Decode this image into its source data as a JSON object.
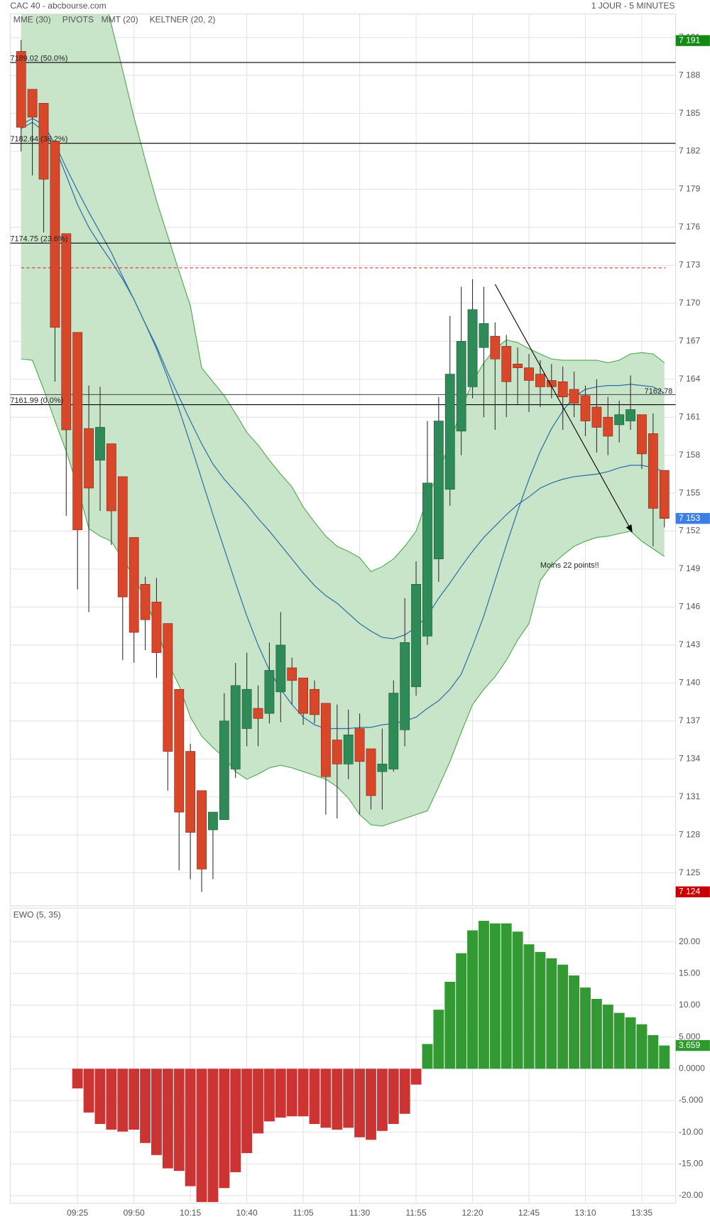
{
  "chart_data": [
    {
      "type": "candlestick",
      "title": "CAC 40 - abcbourse.com",
      "subtitle": "1 JOUR - 5 MINUTES",
      "categories": [
        null,
        null,
        null,
        null,
        null,
        "09:25",
        null,
        null,
        null,
        null,
        "09:50",
        null,
        null,
        null,
        null,
        "10:15",
        null,
        null,
        null,
        null,
        "10:40",
        null,
        null,
        null,
        null,
        "11:05",
        null,
        null,
        null,
        null,
        "11:30",
        null,
        null,
        null,
        null,
        "11:55",
        null,
        null,
        null,
        null,
        "12:20",
        null,
        null,
        null,
        null,
        "12:45",
        null,
        null,
        null,
        null,
        "13:10",
        null,
        null,
        null,
        null,
        "13:35",
        null,
        null
      ],
      "open": [
        7189.9,
        7186.9,
        7185.8,
        7182.8,
        7175.5,
        7167.7,
        7160.1,
        7157.6,
        7158.9,
        7156.3,
        7151.5,
        7147.8,
        7146.4,
        7144.7,
        7139.5,
        7134.6,
        7131.5,
        7128.4,
        7129.2,
        7133.2,
        7136.4,
        7138.0,
        7137.6,
        7139.3,
        7141.2,
        7140.4,
        7139.5,
        7138.4,
        7135.5,
        7133.6,
        7136.4,
        7134.8,
        7133.0,
        7133.2,
        7136.3,
        7139.7,
        7143.7,
        7149.8,
        7155.3,
        7159.9,
        7163.4,
        7166.5,
        7167.4,
        7166.6,
        7165.2,
        7164.9,
        7164.4,
        7163.9,
        7163.8,
        7163.2,
        7162.7,
        7161.8,
        7161.0,
        7160.4,
        7160.7,
        7161.2,
        7159.7,
        7156.8
      ],
      "high": [
        7190.8,
        7186.9,
        7185.8,
        7182.8,
        7175.5,
        7167.7,
        7163.5,
        7163.4,
        7158.9,
        7156.3,
        7151.5,
        7148.4,
        7148.3,
        7144.7,
        7139.5,
        7135.2,
        7131.5,
        7129.8,
        7139.2,
        7141.6,
        7142.4,
        7139.8,
        7143.2,
        7145.6,
        7142.0,
        7140.4,
        7140.2,
        7138.4,
        7138.3,
        7137.9,
        7137.6,
        7134.8,
        7136.4,
        7140.2,
        7146.7,
        7149.6,
        7160.7,
        7162.6,
        7169.0,
        7171.3,
        7171.9,
        7171.3,
        7168.5,
        7167.5,
        7166.5,
        7166.0,
        7165.5,
        7165.2,
        7165.0,
        7164.6,
        7163.5,
        7164.0,
        7162.6,
        7162.3,
        7164.3,
        7161.2,
        7161.3,
        7156.8
      ],
      "low": [
        7182.0,
        7180.1,
        7175.6,
        7163.8,
        7153.2,
        7147.4,
        7145.6,
        7153.6,
        7150.9,
        7141.8,
        7141.6,
        7142.6,
        7140.4,
        7131.5,
        7125.2,
        7124.5,
        7123.5,
        7124.5,
        7129.2,
        7132.5,
        7135.0,
        7135.0,
        7136.8,
        7136.9,
        7138.3,
        7136.7,
        7136.8,
        7129.6,
        7129.3,
        7132.4,
        7129.6,
        7130.0,
        7130.0,
        7133.0,
        7135.0,
        7139.0,
        7143.0,
        7148.0,
        7154.0,
        7158.0,
        7162.5,
        7161.0,
        7160.0,
        7161.0,
        7162.0,
        7161.4,
        7161.8,
        7162.5,
        7160.0,
        7161.0,
        7159.5,
        7158.2,
        7158.0,
        7159.0,
        7160.0,
        7156.9,
        7150.8,
        7152.3
      ],
      "close": [
        7183.9,
        7184.7,
        7179.8,
        7168.1,
        7160.0,
        7152.1,
        7155.4,
        7160.2,
        7153.6,
        7146.8,
        7144.0,
        7145.0,
        7142.4,
        7134.6,
        7129.8,
        7128.2,
        7125.3,
        7129.8,
        7137.0,
        7139.8,
        7139.5,
        7137.2,
        7141.0,
        7143.0,
        7140.2,
        7137.6,
        7137.5,
        7132.6,
        7133.6,
        7135.9,
        7133.8,
        7131.1,
        7133.6,
        7139.2,
        7143.2,
        7147.8,
        7155.8,
        7160.7,
        7164.4,
        7167.0,
        7169.5,
        7168.4,
        7165.6,
        7163.8,
        7164.9,
        7163.9,
        7163.4,
        7163.4,
        7162.6,
        7162.1,
        7160.7,
        7160.2,
        7159.5,
        7161.2,
        7161.6,
        7158.1,
        7153.8,
        7153.0
      ],
      "up_color": "#2e8b57",
      "down_color": "#d9472b",
      "ylim": [
        7122.4,
        7192.85
      ],
      "yticks": [
        {
          "value": 7125,
          "label": "7 125"
        },
        {
          "value": 7128,
          "label": "7 128"
        },
        {
          "value": 7131,
          "label": "7 131"
        },
        {
          "value": 7134,
          "label": "7 134"
        },
        {
          "value": 7137,
          "label": "7 137"
        },
        {
          "value": 7140,
          "label": "7 140"
        },
        {
          "value": 7143,
          "label": "7 143"
        },
        {
          "value": 7146,
          "label": "7 146"
        },
        {
          "value": 7149,
          "label": "7 149"
        },
        {
          "value": 7152,
          "label": "7 152"
        },
        {
          "value": 7155,
          "label": "7 155"
        },
        {
          "value": 7158,
          "label": "7 158"
        },
        {
          "value": 7161,
          "label": "7 161"
        },
        {
          "value": 7164,
          "label": "7 164"
        },
        {
          "value": 7167,
          "label": "7 167"
        },
        {
          "value": 7170,
          "label": "7 170"
        },
        {
          "value": 7173,
          "label": "7 173"
        },
        {
          "value": 7176,
          "label": "7 176"
        },
        {
          "value": 7179,
          "label": "7 179"
        },
        {
          "value": 7182,
          "label": "7 182"
        },
        {
          "value": 7185,
          "label": "7 185"
        },
        {
          "value": 7188,
          "label": "7 188"
        },
        {
          "value": 7191,
          "label": "7 191"
        }
      ],
      "grid": true,
      "overlays": [
        {
          "name": "MME (30)",
          "color": "#2a6ea6",
          "values": [
            7184.1,
            7184.6,
            7184.1,
            7182.6,
            7180.7,
            7178.9,
            7177.2,
            7175.6,
            7174.0,
            7172.1,
            7170.3,
            7168.4,
            7166.4,
            7164.1,
            7161.6,
            7158.9,
            7156.1,
            7153.3,
            7150.6,
            7147.9,
            7145.3,
            7143.0,
            7141.0,
            7139.5,
            7138.3,
            7137.3,
            7136.7,
            7136.4,
            7136.4,
            7136.4,
            7136.5,
            7136.5,
            7136.7,
            7136.8,
            7137.0,
            7137.3,
            7138.0,
            7138.6,
            7139.5,
            7140.7,
            7142.9,
            7145.3,
            7148.1,
            7150.9,
            7153.6,
            7156.1,
            7158.3,
            7160.1,
            7161.5,
            7162.6,
            7163.2,
            7163.4,
            7163.5,
            7163.5,
            7163.6,
            7163.5,
            7163.4,
            7162.9
          ]
        },
        {
          "name": "MMT (20)",
          "color": "#2a6ea6",
          "values": [
            7183.8,
            7184.3,
            7183.6,
            7182.3,
            7180.1,
            7177.8,
            7176.0,
            7174.6,
            7173.3,
            7171.9,
            7170.3,
            7168.4,
            7166.6,
            7164.5,
            7162.6,
            7160.7,
            7158.9,
            7157.3,
            7156.1,
            7155.1,
            7154.1,
            7153.0,
            7152.0,
            7150.9,
            7149.8,
            7148.7,
            7147.7,
            7146.9,
            7146.3,
            7145.5,
            7144.7,
            7144.1,
            7143.6,
            7143.5,
            7143.8,
            7144.4,
            7145.3,
            7146.7,
            7147.9,
            7149.2,
            7150.4,
            7151.5,
            7152.4,
            7153.3,
            7154.1,
            7154.7,
            7155.4,
            7155.8,
            7156.1,
            7156.3,
            7156.4,
            7156.5,
            7156.7,
            7157.0,
            7157.2,
            7157.2,
            7157.0,
            7156.7
          ]
        }
      ],
      "keltner": {
        "name": "KELTNER (20, 2)",
        "color": "#4ea64e",
        "fill": "#c9e5c9",
        "upper": [
          7220.5,
          7217.0,
          7213.4,
          7209.8,
          7206.3,
          7202.7,
          7199.1,
          7195.6,
          7192.0,
          7188.4,
          7184.7,
          7181.3,
          7178.1,
          7175.3,
          7172.5,
          7169.8,
          7164.9,
          7163.8,
          7162.7,
          7161.3,
          7159.8,
          7158.8,
          7157.6,
          7156.5,
          7155.5,
          7153.9,
          7152.7,
          7151.6,
          7150.8,
          7150.4,
          7149.9,
          7148.8,
          7149.2,
          7149.8,
          7150.8,
          7152.0,
          7154.6,
          7156.7,
          7159.0,
          7161.6,
          7163.8,
          7165.3,
          7166.4,
          7167.1,
          7166.9,
          7166.4,
          7166.0,
          7165.6,
          7165.5,
          7165.5,
          7165.5,
          7165.5,
          7165.3,
          7165.5,
          7166.0,
          7166.1,
          7166.0,
          7165.3
        ],
        "lower": [
          7165.6,
          7165.5,
          7163.2,
          7160.7,
          7158.3,
          7155.5,
          7152.2,
          7151.6,
          7151.2,
          7149.8,
          7148.4,
          7146.6,
          7144.4,
          7141.6,
          7139.8,
          7137.3,
          7135.8,
          7134.9,
          7134.1,
          7133.0,
          7132.4,
          7132.8,
          7133.3,
          7133.5,
          7133.3,
          7133.0,
          7132.7,
          7132.4,
          7131.8,
          7130.9,
          7129.6,
          7128.8,
          7128.7,
          7129.0,
          7129.3,
          7129.6,
          7129.9,
          7131.8,
          7133.8,
          7136.1,
          7138.3,
          7139.5,
          7140.5,
          7141.8,
          7143.4,
          7144.7,
          7148.1,
          7149.3,
          7150.1,
          7150.8,
          7151.2,
          7151.5,
          7151.6,
          7151.8,
          7152.0,
          7151.2,
          7150.6,
          7150.0
        ]
      },
      "pivots": {
        "name": "PIVOTS",
        "color": "#555555",
        "levels": [
          {
            "value": 7189.02,
            "label": "7189.02  (50.0%)"
          },
          {
            "value": 7182.64,
            "label": "7182.64  (38.2%)"
          },
          {
            "value": 7174.75,
            "label": "7174.75  (23.6%)"
          },
          {
            "value": 7161.99,
            "label": "7161.99  (0.0%)"
          }
        ]
      },
      "reference_lines": [
        {
          "value": 7172.8,
          "color": "#e03030",
          "dashed": true
        },
        {
          "value": 7162.78,
          "color": "#555555",
          "dashed": false
        }
      ],
      "badges": [
        {
          "value": 7190.75,
          "label": "7 191",
          "color": "#148a14"
        },
        {
          "value": 7153,
          "label": "7 153",
          "color": "#3b7fe6"
        },
        {
          "value": 7123.5,
          "label": "7 124",
          "color": "#c80000"
        }
      ],
      "annotation": "Moins 22 points!!"
    },
    {
      "type": "bar",
      "title": "EWO (5, 35)",
      "title_color": "#3c9a3c",
      "values": [
        null,
        null,
        null,
        null,
        null,
        -3.1,
        -6.9,
        -8.7,
        -9.6,
        -9.9,
        -9.6,
        -11.7,
        -13.6,
        -15.7,
        -16.1,
        -18.5,
        -21.0,
        -21.0,
        -18.8,
        -16.3,
        -13.3,
        -10.2,
        -8.3,
        -7.7,
        -7.5,
        -7.5,
        -8.7,
        -9.3,
        -9.6,
        -9.3,
        -10.8,
        -11.2,
        -9.8,
        -8.7,
        -7.1,
        -2.5,
        3.9,
        9.3,
        13.7,
        18.2,
        21.8,
        23.3,
        22.9,
        22.9,
        21.6,
        19.6,
        18.4,
        17.4,
        16.4,
        14.7,
        12.8,
        11.0,
        10.1,
        8.8,
        8.1,
        7.0,
        5.3,
        3.659
      ],
      "up_color": "#339933",
      "down_color": "#cc3333",
      "badge_color": "#2e9a2e",
      "ylim": [
        -21.2,
        25.3
      ],
      "yticks": [
        {
          "value": 20,
          "label": "20.00"
        },
        {
          "value": 15,
          "label": "15.00"
        },
        {
          "value": 10,
          "label": "10.00"
        },
        {
          "value": 5,
          "label": "5.000"
        },
        {
          "value": 0,
          "label": "0.0000"
        },
        {
          "value": -5,
          "label": "-5.000"
        },
        {
          "value": -10,
          "label": "-10.00"
        },
        {
          "value": -15,
          "label": "-15.00"
        },
        {
          "value": -20,
          "label": "-20.00"
        }
      ],
      "grid": true
    }
  ]
}
